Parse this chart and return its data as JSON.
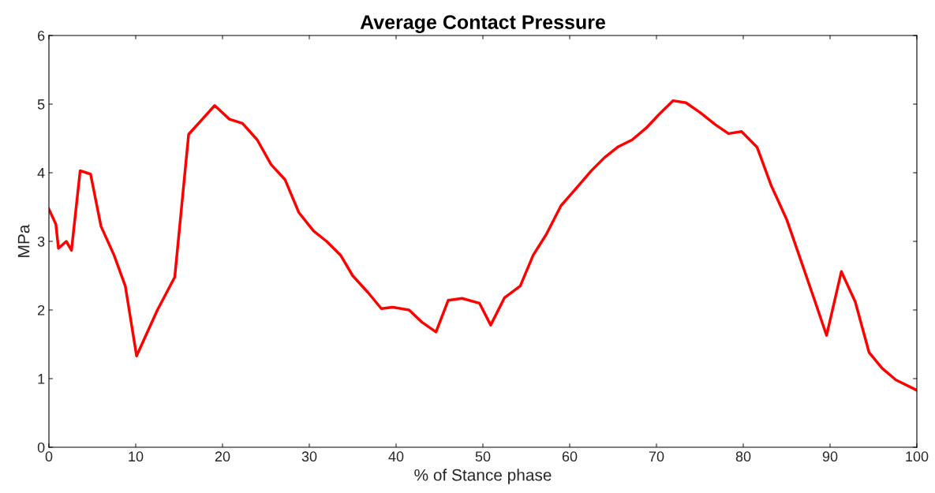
{
  "chart_data": {
    "type": "line",
    "title": "Average Contact Pressure",
    "xlabel": "% of Stance phase",
    "ylabel": "MPa",
    "xlim": [
      0,
      100
    ],
    "xticks": [
      0,
      10,
      20,
      30,
      40,
      50,
      60,
      70,
      80,
      90,
      100
    ],
    "ylim": [
      0,
      6
    ],
    "yticks": [
      0,
      1,
      2,
      3,
      4,
      5,
      6
    ],
    "grid": false,
    "legend": false,
    "marker": "none",
    "line_style": "solid",
    "series": [
      {
        "color": "#ff0000",
        "x": [
          0,
          0.8,
          1.1,
          2,
          2.6,
          3.6,
          4.8,
          6,
          7.5,
          8.8,
          10.1,
          12.5,
          14.5,
          16.1,
          19.1,
          20.8,
          22.3,
          24,
          25.6,
          27.2,
          28.8,
          30.5,
          32,
          33.6,
          35,
          36.8,
          38.3,
          39.6,
          41.5,
          43,
          44.6,
          46,
          47.6,
          49.6,
          50.9,
          52.5,
          54.3,
          55.8,
          57.3,
          59,
          60.8,
          62.5,
          64,
          65.6,
          67.2,
          68.8,
          70.3,
          71.9,
          73.4,
          75,
          76.8,
          78.3,
          79.8,
          81.6,
          83.2,
          85,
          86.7,
          88.2,
          89.6,
          91.3,
          92.9,
          94.5,
          96,
          97.6,
          100
        ],
        "values": [
          3.47,
          3.25,
          2.9,
          3.0,
          2.87,
          4.03,
          3.98,
          3.22,
          2.8,
          2.35,
          1.33,
          2.0,
          2.48,
          4.56,
          4.98,
          4.78,
          4.72,
          4.48,
          4.12,
          3.9,
          3.42,
          3.15,
          3.0,
          2.8,
          2.5,
          2.25,
          2.02,
          2.04,
          2.0,
          1.82,
          1.68,
          2.14,
          2.17,
          2.1,
          1.78,
          2.18,
          2.35,
          2.8,
          3.1,
          3.52,
          3.78,
          4.03,
          4.22,
          4.38,
          4.48,
          4.65,
          4.85,
          5.05,
          5.02,
          4.88,
          4.7,
          4.57,
          4.6,
          4.37,
          3.82,
          3.32,
          2.7,
          2.15,
          1.63,
          2.56,
          2.12,
          1.38,
          1.15,
          0.98,
          0.83
        ]
      }
    ]
  }
}
